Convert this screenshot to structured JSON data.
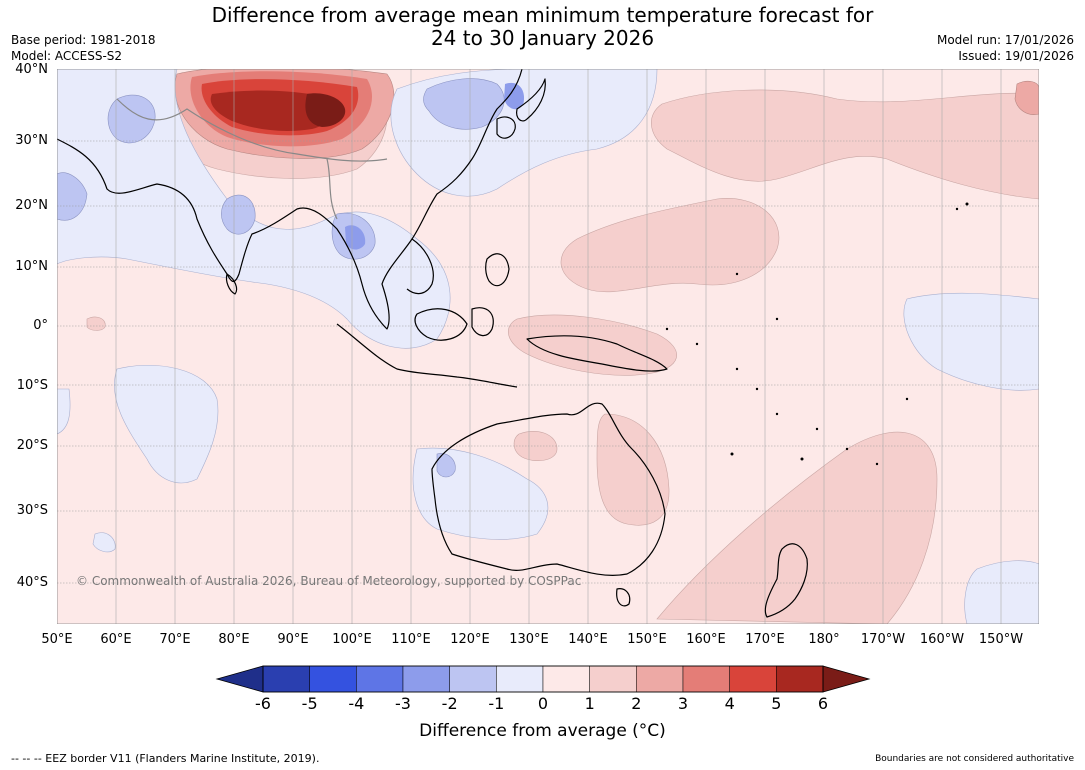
{
  "title_line1": "Difference from average mean minimum temperature forecast for",
  "title_line2": "24 to 30 January 2026",
  "base_period": "Base period: 1981-2018",
  "model": "Model: ACCESS-S2",
  "model_run": "Model run: 17/01/2026",
  "issued": "Issued: 19/01/2026",
  "lat_labels": [
    "40°N",
    "30°N",
    "20°N",
    "10°N",
    "0°",
    "10°S",
    "20°S",
    "30°S",
    "40°S"
  ],
  "lon_labels": [
    "50°E",
    "60°E",
    "70°E",
    "80°E",
    "90°E",
    "100°E",
    "110°E",
    "120°E",
    "130°E",
    "140°E",
    "150°E",
    "160°E",
    "170°E",
    "180°",
    "170°W",
    "160°W",
    "150°W"
  ],
  "copyright": "© Commonwealth of Australia 2026, Bureau of Meteorology, supported by COSPPac",
  "colorbar": {
    "ticks": [
      "-6",
      "-5",
      "-4",
      "-3",
      "-2",
      "-1",
      "0",
      "1",
      "2",
      "3",
      "4",
      "5",
      "6"
    ],
    "colors": [
      "#2a3fb0",
      "#3452e0",
      "#5e75e6",
      "#8d9ceb",
      "#bdc5f2",
      "#e8ebfb",
      "#fde9e8",
      "#f5cfcd",
      "#eda9a5",
      "#e47d77",
      "#d9443a",
      "#a82820"
    ],
    "under_color": "#1f2f8a",
    "over_color": "#7a1c17",
    "label": "Difference from average (°C)"
  },
  "footer_left": "--  --  -- EEZ border V11 (Flanders Marine Institute, 2019).",
  "footer_right": "Boundaries are not considered authoritative"
}
